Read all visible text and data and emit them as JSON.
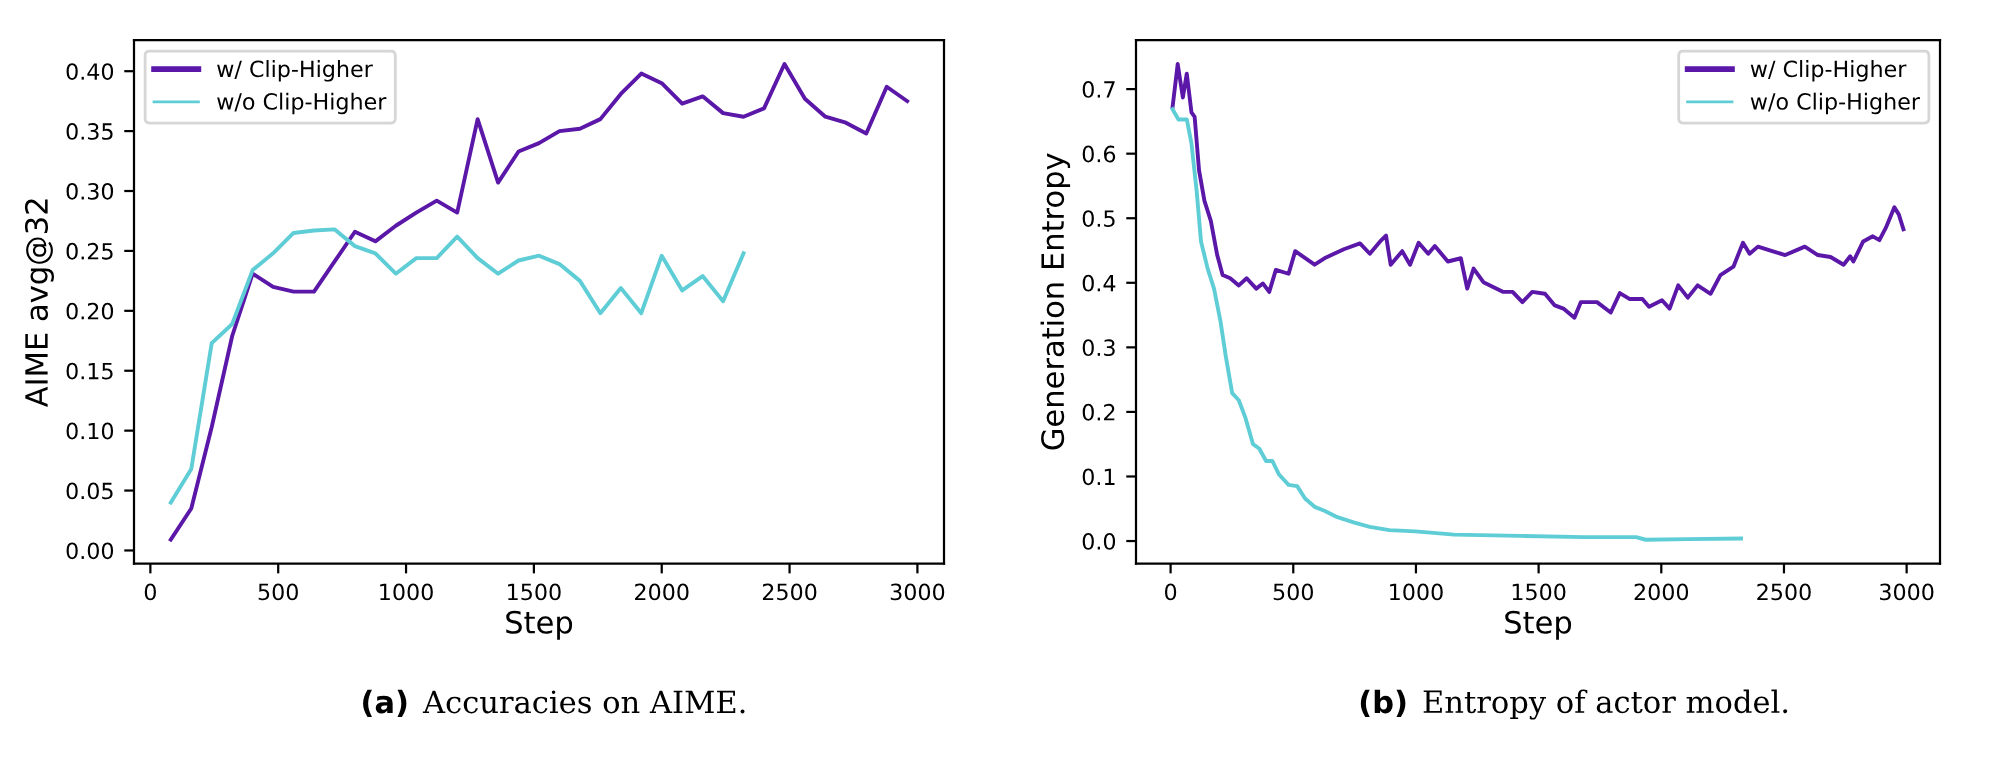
{
  "chart_data": [
    {
      "type": "line",
      "ylabel": "AIME avg@32",
      "xlabel": "Step",
      "annotations": [
        "(a)",
        "Accuracies on AIME."
      ],
      "legend": "top left",
      "grid": false,
      "xlim": [
        -64,
        3104
      ],
      "ylim": [
        -0.011,
        0.426
      ],
      "xticks": [
        0,
        500,
        1000,
        1500,
        2000,
        2500,
        3000
      ],
      "yticks": [
        {
          "value": 0,
          "label": "0.00"
        },
        {
          "value": 0.05,
          "label": "0.05"
        },
        {
          "value": 0.1,
          "label": "0.10"
        },
        {
          "value": 0.15,
          "label": "0.15"
        },
        {
          "value": 0.2,
          "label": "0.20"
        },
        {
          "value": 0.25,
          "label": "0.25"
        },
        {
          "value": 0.3,
          "label": "0.30"
        },
        {
          "value": 0.35,
          "label": "0.35"
        },
        {
          "value": 0.4,
          "label": "0.40"
        }
      ],
      "series": [
        {
          "name": "w/ Clip-Higher",
          "color": "#5a17a8",
          "x": [
            80,
            160,
            240,
            320,
            400,
            480,
            560,
            640,
            720,
            800,
            880,
            960,
            1040,
            1120,
            1200,
            1280,
            1360,
            1440,
            1520,
            1600,
            1680,
            1760,
            1840,
            1920,
            2000,
            2080,
            2160,
            2240,
            2320,
            2400,
            2480,
            2560,
            2640,
            2720,
            2800,
            2880,
            2960
          ],
          "values": [
            0.009,
            0.035,
            0.103,
            0.179,
            0.231,
            0.22,
            0.216,
            0.216,
            0.241,
            0.266,
            0.258,
            0.271,
            0.282,
            0.292,
            0.282,
            0.36,
            0.307,
            0.333,
            0.34,
            0.35,
            0.352,
            0.36,
            0.381,
            0.398,
            0.39,
            0.373,
            0.379,
            0.365,
            0.362,
            0.369,
            0.406,
            0.377,
            0.362,
            0.357,
            0.348,
            0.387,
            0.375
          ]
        },
        {
          "name": "w/o Clip-Higher",
          "color": "#5fcdd6",
          "x": [
            80,
            160,
            240,
            320,
            400,
            480,
            560,
            640,
            720,
            800,
            880,
            960,
            1040,
            1120,
            1200,
            1280,
            1360,
            1440,
            1520,
            1600,
            1680,
            1760,
            1840,
            1920,
            2000,
            2080,
            2160,
            2240,
            2320
          ],
          "values": [
            0.04,
            0.068,
            0.173,
            0.189,
            0.234,
            0.248,
            0.265,
            0.267,
            0.268,
            0.254,
            0.248,
            0.231,
            0.244,
            0.244,
            0.262,
            0.244,
            0.231,
            0.242,
            0.246,
            0.239,
            0.225,
            0.198,
            0.219,
            0.198,
            0.246,
            0.217,
            0.229,
            0.208,
            0.248
          ]
        }
      ]
    },
    {
      "type": "line",
      "ylabel": "Generation Entropy",
      "xlabel": "Step",
      "annotations": [
        "(b)",
        "Entropy of actor model."
      ],
      "legend": "top right",
      "grid": false,
      "xlim": [
        -141,
        3136
      ],
      "ylim": [
        -0.035,
        0.776
      ],
      "xticks": [
        0,
        500,
        1000,
        1500,
        2000,
        2500,
        3000
      ],
      "yticks": [
        {
          "value": 0,
          "label": "0.0"
        },
        {
          "value": 0.1,
          "label": "0.1"
        },
        {
          "value": 0.2,
          "label": "0.2"
        },
        {
          "value": 0.3,
          "label": "0.3"
        },
        {
          "value": 0.4,
          "label": "0.4"
        },
        {
          "value": 0.5,
          "label": "0.5"
        },
        {
          "value": 0.6,
          "label": "0.6"
        },
        {
          "value": 0.7,
          "label": "0.7"
        }
      ],
      "series": [
        {
          "name": "w/ Clip-Higher",
          "color": "#5a17a8",
          "x": [
            8,
            29,
            50,
            66,
            85,
            98,
            116,
            138,
            164,
            190,
            212,
            243,
            278,
            310,
            349,
            376,
            402,
            429,
            481,
            508,
            587,
            627,
            706,
            772,
            812,
            854,
            878,
            897,
            944,
            976,
            1011,
            1050,
            1077,
            1130,
            1183,
            1209,
            1235,
            1275,
            1354,
            1394,
            1434,
            1474,
            1526,
            1566,
            1601,
            1646,
            1672,
            1738,
            1794,
            1831,
            1870,
            1923,
            1950,
            2003,
            2034,
            2069,
            2108,
            2148,
            2201,
            2241,
            2294,
            2333,
            2360,
            2394,
            2452,
            2505,
            2585,
            2638,
            2690,
            2743,
            2770,
            2783,
            2823,
            2862,
            2889,
            2915,
            2950,
            2968,
            2987
          ],
          "values": [
            0.672,
            0.739,
            0.687,
            0.724,
            0.664,
            0.657,
            0.574,
            0.527,
            0.496,
            0.443,
            0.412,
            0.407,
            0.396,
            0.407,
            0.391,
            0.399,
            0.386,
            0.42,
            0.414,
            0.449,
            0.428,
            0.438,
            0.452,
            0.461,
            0.445,
            0.464,
            0.473,
            0.428,
            0.449,
            0.428,
            0.462,
            0.445,
            0.457,
            0.433,
            0.438,
            0.391,
            0.422,
            0.401,
            0.386,
            0.386,
            0.37,
            0.386,
            0.383,
            0.365,
            0.36,
            0.346,
            0.37,
            0.37,
            0.354,
            0.384,
            0.375,
            0.375,
            0.363,
            0.373,
            0.36,
            0.396,
            0.377,
            0.396,
            0.383,
            0.412,
            0.425,
            0.462,
            0.445,
            0.456,
            0.449,
            0.443,
            0.456,
            0.443,
            0.44,
            0.428,
            0.441,
            0.433,
            0.464,
            0.472,
            0.466,
            0.485,
            0.517,
            0.506,
            0.483
          ]
        },
        {
          "name": "w/o Clip-Higher",
          "color": "#5fcdd6",
          "x": [
            8,
            32,
            66,
            85,
            106,
            124,
            151,
            177,
            204,
            225,
            251,
            278,
            304,
            336,
            362,
            389,
            415,
            442,
            481,
            516,
            548,
            587,
            627,
            680,
            746,
            812,
            892,
            997,
            1156,
            1421,
            1685,
            1897,
            1937,
            2108,
            2325
          ],
          "values": [
            0.669,
            0.653,
            0.653,
            0.616,
            0.543,
            0.464,
            0.422,
            0.391,
            0.339,
            0.286,
            0.229,
            0.218,
            0.192,
            0.15,
            0.143,
            0.124,
            0.124,
            0.103,
            0.087,
            0.085,
            0.066,
            0.053,
            0.047,
            0.037,
            0.029,
            0.022,
            0.017,
            0.015,
            0.01,
            0.008,
            0.006,
            0.006,
            0.002,
            0.003,
            0.004
          ]
        }
      ]
    }
  ]
}
